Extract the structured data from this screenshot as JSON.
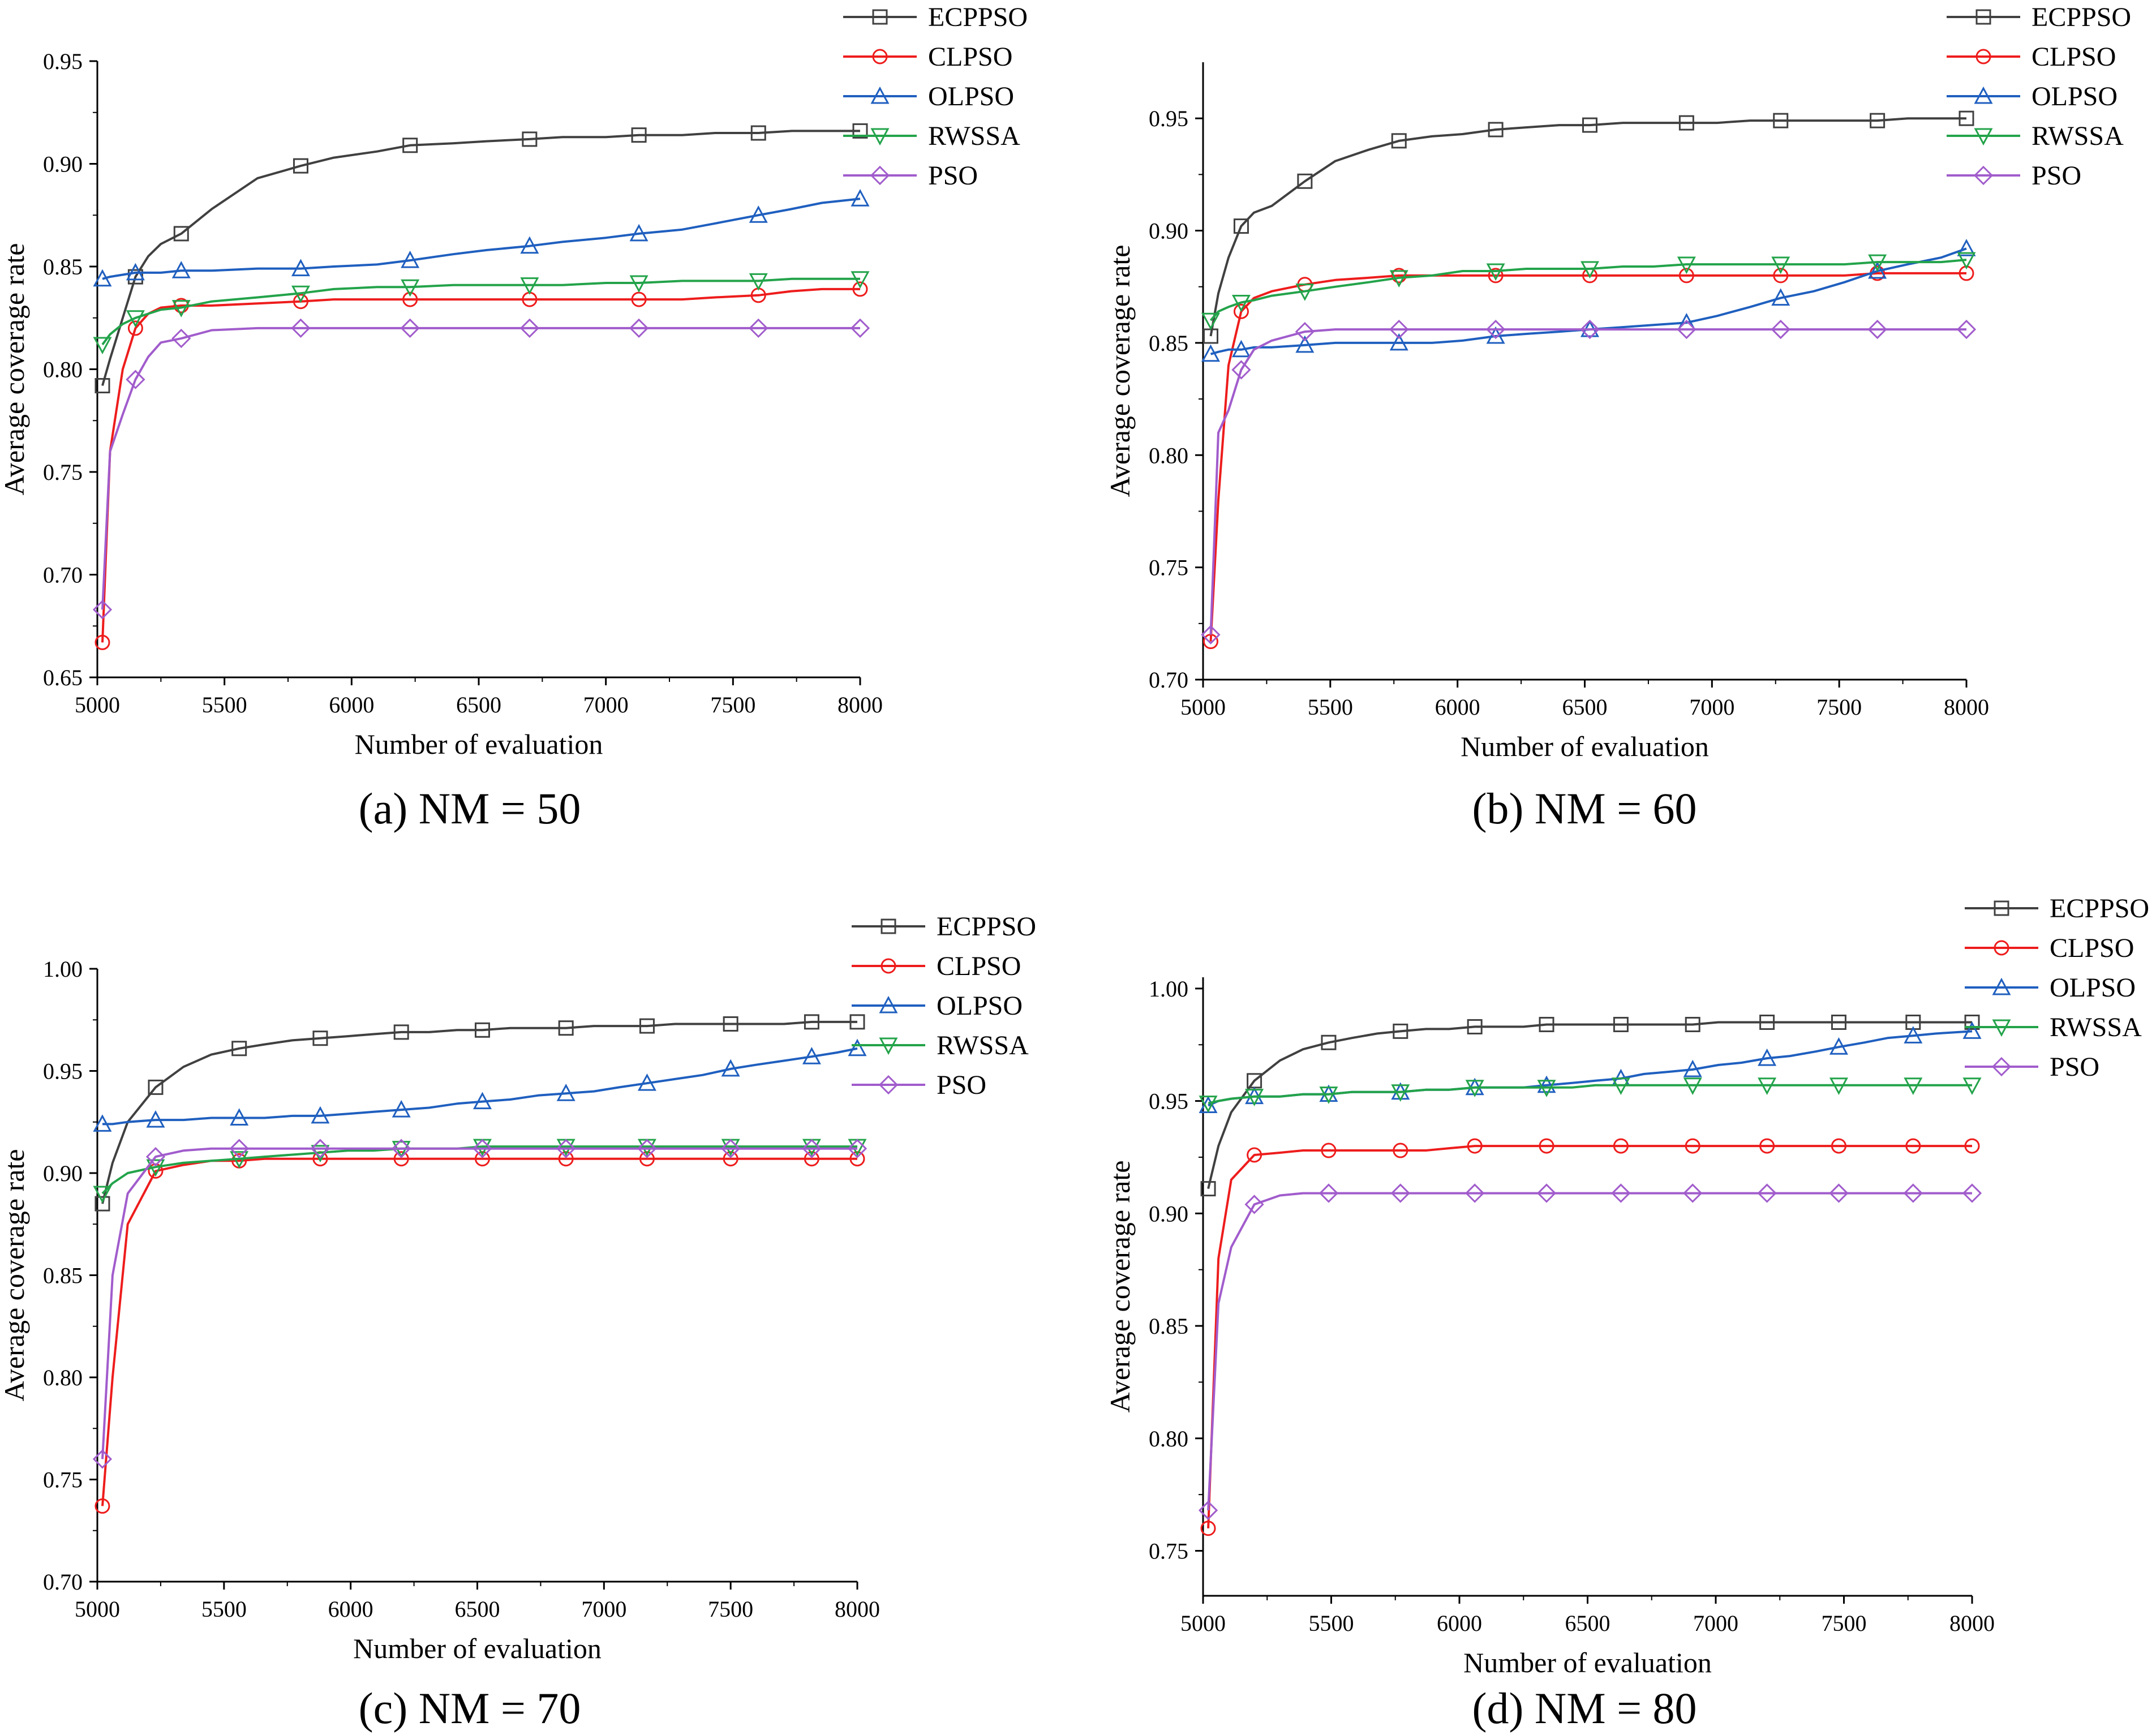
{
  "colors": {
    "ECPPSO": "#404040",
    "CLPSO": "#ee1c1c",
    "OLPSO": "#1f5fbf",
    "RWSSA": "#23a34a",
    "PSO": "#a15ccc"
  },
  "markers": {
    "ECPPSO": "square",
    "CLPSO": "circle",
    "OLPSO": "triangle-up",
    "RWSSA": "triangle-down",
    "PSO": "diamond"
  },
  "chart_data": [
    {
      "type": "line",
      "caption": "(a) NM = 50",
      "xlabel": "Number of evaluation",
      "ylabel": "Average coverage rate",
      "xlim": [
        5000,
        8000
      ],
      "ylim": [
        0.65,
        0.95
      ],
      "xticks": [
        "5000",
        "5500",
        "6000",
        "6500",
        "7000",
        "7500",
        "8000"
      ],
      "yticks": [
        "0.65",
        "0.70",
        "0.75",
        "0.80",
        "0.85",
        "0.90",
        "0.95"
      ],
      "legend": [
        "ECPPSO",
        "CLPSO",
        "OLPSO",
        "RWSSA",
        "PSO"
      ],
      "legend_position": "top-right",
      "x": [
        5020,
        5050,
        5100,
        5150,
        5200,
        5250,
        5330,
        5450,
        5630,
        5800,
        5930,
        6100,
        6230,
        6400,
        6530,
        6700,
        6830,
        7000,
        7130,
        7300,
        7430,
        7600,
        7730,
        7850,
        8000
      ],
      "series": [
        {
          "name": "ECPPSO",
          "values": [
            0.792,
            0.805,
            0.825,
            0.845,
            0.855,
            0.861,
            0.866,
            0.878,
            0.893,
            0.899,
            0.903,
            0.906,
            0.909,
            0.91,
            0.911,
            0.912,
            0.913,
            0.913,
            0.914,
            0.914,
            0.915,
            0.915,
            0.916,
            0.916,
            0.916
          ]
        },
        {
          "name": "CLPSO",
          "values": [
            0.667,
            0.76,
            0.8,
            0.82,
            0.827,
            0.83,
            0.831,
            0.831,
            0.832,
            0.833,
            0.834,
            0.834,
            0.834,
            0.834,
            0.834,
            0.834,
            0.834,
            0.834,
            0.834,
            0.834,
            0.835,
            0.836,
            0.838,
            0.839,
            0.839
          ]
        },
        {
          "name": "OLPSO",
          "values": [
            0.844,
            0.845,
            0.846,
            0.847,
            0.847,
            0.847,
            0.848,
            0.848,
            0.849,
            0.849,
            0.85,
            0.851,
            0.853,
            0.856,
            0.858,
            0.86,
            0.862,
            0.864,
            0.866,
            0.868,
            0.871,
            0.875,
            0.878,
            0.881,
            0.883
          ]
        },
        {
          "name": "RWSSA",
          "values": [
            0.812,
            0.817,
            0.822,
            0.825,
            0.827,
            0.829,
            0.83,
            0.833,
            0.835,
            0.837,
            0.839,
            0.84,
            0.84,
            0.841,
            0.841,
            0.841,
            0.841,
            0.842,
            0.842,
            0.843,
            0.843,
            0.843,
            0.844,
            0.844,
            0.844
          ]
        },
        {
          "name": "PSO",
          "values": [
            0.683,
            0.76,
            0.778,
            0.795,
            0.806,
            0.813,
            0.815,
            0.819,
            0.82,
            0.82,
            0.82,
            0.82,
            0.82,
            0.82,
            0.82,
            0.82,
            0.82,
            0.82,
            0.82,
            0.82,
            0.82,
            0.82,
            0.82,
            0.82,
            0.82
          ]
        }
      ]
    },
    {
      "type": "line",
      "caption": "(b) NM = 60",
      "xlabel": "Number of evaluation",
      "ylabel": "Average coverage rate",
      "xlim": [
        5000,
        8000
      ],
      "ylim": [
        0.7,
        0.975
      ],
      "xticks": [
        "5000",
        "5500",
        "6000",
        "6500",
        "7000",
        "7500",
        "8000"
      ],
      "yticks": [
        "0.70",
        "0.75",
        "0.80",
        "0.85",
        "0.90",
        "0.95"
      ],
      "legend": [
        "ECPPSO",
        "CLPSO",
        "OLPSO",
        "RWSSA",
        "PSO"
      ],
      "legend_position": "top-right",
      "x": [
        5030,
        5060,
        5100,
        5150,
        5200,
        5270,
        5400,
        5520,
        5650,
        5770,
        5900,
        6020,
        6150,
        6270,
        6400,
        6520,
        6650,
        6770,
        6900,
        7020,
        7150,
        7270,
        7400,
        7520,
        7650,
        7770,
        7900,
        8000
      ],
      "series": [
        {
          "name": "ECPPSO",
          "values": [
            0.853,
            0.872,
            0.888,
            0.902,
            0.908,
            0.911,
            0.922,
            0.931,
            0.936,
            0.94,
            0.942,
            0.943,
            0.945,
            0.946,
            0.947,
            0.947,
            0.948,
            0.948,
            0.948,
            0.948,
            0.949,
            0.949,
            0.949,
            0.949,
            0.949,
            0.95,
            0.95,
            0.95
          ]
        },
        {
          "name": "CLPSO",
          "values": [
            0.717,
            0.78,
            0.84,
            0.864,
            0.87,
            0.873,
            0.876,
            0.878,
            0.879,
            0.88,
            0.88,
            0.88,
            0.88,
            0.88,
            0.88,
            0.88,
            0.88,
            0.88,
            0.88,
            0.88,
            0.88,
            0.88,
            0.88,
            0.88,
            0.881,
            0.881,
            0.881,
            0.881
          ]
        },
        {
          "name": "OLPSO",
          "values": [
            0.845,
            0.846,
            0.847,
            0.847,
            0.848,
            0.848,
            0.849,
            0.85,
            0.85,
            0.85,
            0.85,
            0.851,
            0.853,
            0.854,
            0.855,
            0.856,
            0.857,
            0.858,
            0.859,
            0.862,
            0.866,
            0.87,
            0.873,
            0.877,
            0.882,
            0.885,
            0.888,
            0.892
          ]
        },
        {
          "name": "RWSSA",
          "values": [
            0.86,
            0.864,
            0.866,
            0.868,
            0.869,
            0.871,
            0.873,
            0.875,
            0.877,
            0.879,
            0.88,
            0.882,
            0.882,
            0.883,
            0.883,
            0.883,
            0.884,
            0.884,
            0.885,
            0.885,
            0.885,
            0.885,
            0.885,
            0.885,
            0.886,
            0.886,
            0.886,
            0.887
          ]
        },
        {
          "name": "PSO",
          "values": [
            0.72,
            0.81,
            0.82,
            0.838,
            0.847,
            0.851,
            0.855,
            0.856,
            0.856,
            0.856,
            0.856,
            0.856,
            0.856,
            0.856,
            0.856,
            0.856,
            0.856,
            0.856,
            0.856,
            0.856,
            0.856,
            0.856,
            0.856,
            0.856,
            0.856,
            0.856,
            0.856,
            0.856
          ]
        }
      ]
    },
    {
      "type": "line",
      "caption": "(c) NM = 70",
      "xlabel": "Number of evaluation",
      "ylabel": "Average coverage rate",
      "xlim": [
        5000,
        8000
      ],
      "ylim": [
        0.7,
        1.0
      ],
      "xticks": [
        "5000",
        "5500",
        "6000",
        "6500",
        "7000",
        "7500",
        "8000"
      ],
      "yticks": [
        "0.70",
        "0.75",
        "0.80",
        "0.85",
        "0.90",
        "0.95",
        "1.00"
      ],
      "legend": [
        "ECPPSO",
        "CLPSO",
        "OLPSO",
        "RWSSA",
        "PSO"
      ],
      "legend_position": "top-right",
      "x": [
        5020,
        5060,
        5120,
        5230,
        5340,
        5450,
        5560,
        5660,
        5770,
        5880,
        5990,
        6090,
        6200,
        6310,
        6420,
        6520,
        6630,
        6740,
        6850,
        6960,
        7060,
        7170,
        7280,
        7390,
        7500,
        7600,
        7710,
        7820,
        7920,
        8000
      ],
      "series": [
        {
          "name": "ECPPSO",
          "values": [
            0.885,
            0.905,
            0.925,
            0.942,
            0.952,
            0.958,
            0.961,
            0.963,
            0.965,
            0.966,
            0.967,
            0.968,
            0.969,
            0.969,
            0.97,
            0.97,
            0.971,
            0.971,
            0.971,
            0.972,
            0.972,
            0.972,
            0.973,
            0.973,
            0.973,
            0.973,
            0.973,
            0.974,
            0.974,
            0.974
          ]
        },
        {
          "name": "CLPSO",
          "values": [
            0.737,
            0.8,
            0.875,
            0.901,
            0.904,
            0.906,
            0.906,
            0.907,
            0.907,
            0.907,
            0.907,
            0.907,
            0.907,
            0.907,
            0.907,
            0.907,
            0.907,
            0.907,
            0.907,
            0.907,
            0.907,
            0.907,
            0.907,
            0.907,
            0.907,
            0.907,
            0.907,
            0.907,
            0.907,
            0.907
          ]
        },
        {
          "name": "OLPSO",
          "values": [
            0.924,
            0.924,
            0.925,
            0.926,
            0.926,
            0.927,
            0.927,
            0.927,
            0.928,
            0.928,
            0.929,
            0.93,
            0.931,
            0.932,
            0.934,
            0.935,
            0.936,
            0.938,
            0.939,
            0.94,
            0.942,
            0.944,
            0.946,
            0.948,
            0.951,
            0.953,
            0.955,
            0.957,
            0.959,
            0.961
          ]
        },
        {
          "name": "RWSSA",
          "values": [
            0.89,
            0.895,
            0.9,
            0.903,
            0.905,
            0.906,
            0.907,
            0.908,
            0.909,
            0.91,
            0.911,
            0.911,
            0.912,
            0.912,
            0.912,
            0.913,
            0.913,
            0.913,
            0.913,
            0.913,
            0.913,
            0.913,
            0.913,
            0.913,
            0.913,
            0.913,
            0.913,
            0.913,
            0.913,
            0.913
          ]
        },
        {
          "name": "PSO",
          "values": [
            0.76,
            0.85,
            0.89,
            0.908,
            0.911,
            0.912,
            0.912,
            0.912,
            0.912,
            0.912,
            0.912,
            0.912,
            0.912,
            0.912,
            0.912,
            0.912,
            0.912,
            0.912,
            0.912,
            0.912,
            0.912,
            0.912,
            0.912,
            0.912,
            0.912,
            0.912,
            0.912,
            0.912,
            0.912,
            0.912
          ]
        }
      ]
    },
    {
      "type": "line",
      "caption": "(d) NM = 80",
      "xlabel": "Number of evaluation",
      "ylabel": "Average coverage rate",
      "xlim": [
        5000,
        8000
      ],
      "ylim": [
        0.73,
        1.005
      ],
      "xticks": [
        "5000",
        "5500",
        "6000",
        "6500",
        "7000",
        "7500",
        "8000"
      ],
      "yticks": [
        "0.75",
        "0.80",
        "0.85",
        "0.90",
        "0.95",
        "1.00"
      ],
      "legend": [
        "ECPPSO",
        "CLPSO",
        "OLPSO",
        "RWSSA",
        "PSO"
      ],
      "legend_position": "top-right",
      "x": [
        5020,
        5060,
        5110,
        5200,
        5300,
        5390,
        5490,
        5580,
        5680,
        5770,
        5870,
        5960,
        6060,
        6150,
        6250,
        6340,
        6440,
        6530,
        6630,
        6720,
        6820,
        6910,
        7010,
        7100,
        7200,
        7290,
        7390,
        7480,
        7580,
        7670,
        7770,
        7860,
        8000
      ],
      "series": [
        {
          "name": "ECPPSO",
          "values": [
            0.911,
            0.93,
            0.945,
            0.959,
            0.968,
            0.973,
            0.976,
            0.978,
            0.98,
            0.981,
            0.982,
            0.982,
            0.983,
            0.983,
            0.983,
            0.984,
            0.984,
            0.984,
            0.984,
            0.984,
            0.984,
            0.984,
            0.985,
            0.985,
            0.985,
            0.985,
            0.985,
            0.985,
            0.985,
            0.985,
            0.985,
            0.985,
            0.985
          ]
        },
        {
          "name": "CLPSO",
          "values": [
            0.76,
            0.88,
            0.915,
            0.926,
            0.927,
            0.928,
            0.928,
            0.928,
            0.928,
            0.928,
            0.928,
            0.929,
            0.93,
            0.93,
            0.93,
            0.93,
            0.93,
            0.93,
            0.93,
            0.93,
            0.93,
            0.93,
            0.93,
            0.93,
            0.93,
            0.93,
            0.93,
            0.93,
            0.93,
            0.93,
            0.93,
            0.93,
            0.93
          ]
        },
        {
          "name": "OLPSO",
          "values": [
            0.948,
            0.95,
            0.951,
            0.952,
            0.952,
            0.953,
            0.953,
            0.954,
            0.954,
            0.954,
            0.955,
            0.955,
            0.956,
            0.956,
            0.956,
            0.957,
            0.958,
            0.959,
            0.96,
            0.962,
            0.963,
            0.964,
            0.966,
            0.967,
            0.969,
            0.97,
            0.972,
            0.974,
            0.976,
            0.978,
            0.979,
            0.98,
            0.981
          ]
        },
        {
          "name": "RWSSA",
          "values": [
            0.949,
            0.95,
            0.951,
            0.952,
            0.952,
            0.953,
            0.953,
            0.954,
            0.954,
            0.954,
            0.955,
            0.955,
            0.956,
            0.956,
            0.956,
            0.956,
            0.956,
            0.957,
            0.957,
            0.957,
            0.957,
            0.957,
            0.957,
            0.957,
            0.957,
            0.957,
            0.957,
            0.957,
            0.957,
            0.957,
            0.957,
            0.957,
            0.957
          ]
        },
        {
          "name": "PSO",
          "values": [
            0.768,
            0.86,
            0.885,
            0.904,
            0.908,
            0.909,
            0.909,
            0.909,
            0.909,
            0.909,
            0.909,
            0.909,
            0.909,
            0.909,
            0.909,
            0.909,
            0.909,
            0.909,
            0.909,
            0.909,
            0.909,
            0.909,
            0.909,
            0.909,
            0.909,
            0.909,
            0.909,
            0.909,
            0.909,
            0.909,
            0.909,
            0.909,
            0.909
          ]
        }
      ]
    }
  ]
}
